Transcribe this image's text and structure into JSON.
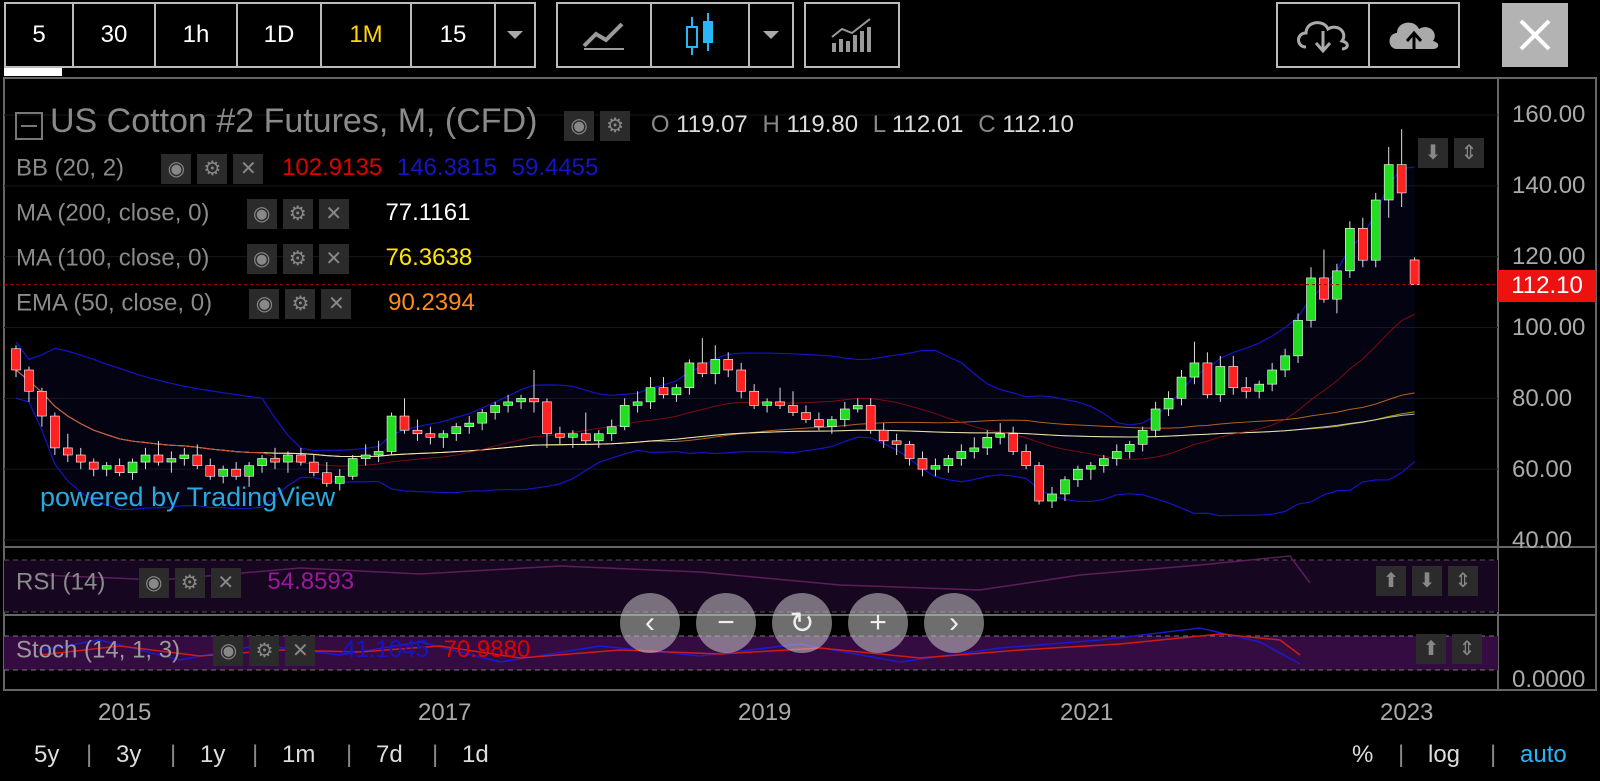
{
  "toolbar": {
    "intervals": [
      "5",
      "30",
      "1h",
      "1D",
      "1M",
      "15"
    ],
    "active_interval": "1M"
  },
  "chart": {
    "title": "US Cotton #2 Futures, M, (CFD)",
    "ohlc": {
      "o_label": "O",
      "o": "119.07",
      "h_label": "H",
      "h": "119.80",
      "l_label": "L",
      "l": "112.01",
      "c_label": "C",
      "c": "112.10"
    },
    "indicators": [
      {
        "name": "BB (20, 2)",
        "values": [
          {
            "text": "102.9135",
            "color": "#e00000"
          },
          {
            "text": "146.3815",
            "color": "#1414c8"
          },
          {
            "text": "59.4455",
            "color": "#1414c8"
          }
        ]
      },
      {
        "name": "MA (200, close, 0)",
        "values": [
          {
            "text": "77.1161",
            "color": "#ffffff"
          }
        ]
      },
      {
        "name": "MA (100, close, 0)",
        "values": [
          {
            "text": "76.3638",
            "color": "#ffe600"
          }
        ]
      },
      {
        "name": "EMA (50, close, 0)",
        "values": [
          {
            "text": "90.2394",
            "color": "#ff8c1a"
          }
        ]
      }
    ],
    "price_axis": [
      "160.00",
      "140.00",
      "120.00",
      "100.00",
      "80.00",
      "60.00",
      "40.00"
    ],
    "last_price": "112.10",
    "watermark": "powered by TradingView",
    "time_axis": [
      "2015",
      "2017",
      "2019",
      "2021",
      "2023"
    ],
    "rsi": {
      "name": "RSI (14)",
      "value": "54.8593"
    },
    "stoch": {
      "name": "Stoch (14, 1, 3)",
      "k": "41.1045",
      "d": "70.9880",
      "axis_label": "0.0000"
    }
  },
  "chart_data": {
    "type": "candlestick",
    "ylim": [
      40,
      160
    ],
    "last": 112.1,
    "colors": {
      "up": "#22dd22",
      "down": "#ff2222",
      "bb": "#1414c8",
      "ema": "#ff8c1a",
      "ma100": "#ffe600",
      "ma200": "#ffffff"
    },
    "candles": [
      [
        94,
        95,
        86,
        88
      ],
      [
        88,
        89,
        79,
        82
      ],
      [
        82,
        83,
        72,
        75
      ],
      [
        75,
        76,
        64,
        66
      ],
      [
        66,
        70,
        62,
        64
      ],
      [
        64,
        66,
        60,
        62
      ],
      [
        62,
        63,
        58,
        60
      ],
      [
        60,
        62,
        58,
        61
      ],
      [
        61,
        63,
        58,
        59
      ],
      [
        59,
        63,
        57,
        62
      ],
      [
        62,
        66,
        60,
        64
      ],
      [
        64,
        68,
        61,
        62
      ],
      [
        62,
        65,
        59,
        63
      ],
      [
        63,
        66,
        61,
        64
      ],
      [
        64,
        67,
        60,
        61
      ],
      [
        61,
        63,
        57,
        58
      ],
      [
        58,
        61,
        56,
        60
      ],
      [
        60,
        62,
        57,
        58
      ],
      [
        58,
        62,
        55,
        61
      ],
      [
        61,
        64,
        59,
        63
      ],
      [
        63,
        66,
        60,
        62
      ],
      [
        62,
        65,
        59,
        64
      ],
      [
        64,
        66,
        61,
        62
      ],
      [
        62,
        64,
        58,
        59
      ],
      [
        59,
        62,
        55,
        56
      ],
      [
        56,
        60,
        54,
        58
      ],
      [
        58,
        64,
        57,
        63
      ],
      [
        63,
        67,
        61,
        64
      ],
      [
        64,
        68,
        62,
        65
      ],
      [
        65,
        76,
        64,
        75
      ],
      [
        75,
        80,
        70,
        71
      ],
      [
        71,
        74,
        68,
        70
      ],
      [
        70,
        72,
        67,
        69
      ],
      [
        69,
        71,
        66,
        70
      ],
      [
        70,
        73,
        68,
        72
      ],
      [
        72,
        75,
        70,
        73
      ],
      [
        73,
        77,
        71,
        76
      ],
      [
        76,
        79,
        74,
        78
      ],
      [
        78,
        81,
        76,
        79
      ],
      [
        79,
        81,
        77,
        80
      ],
      [
        80,
        88,
        76,
        79
      ],
      [
        79,
        80,
        66,
        70
      ],
      [
        70,
        72,
        67,
        69
      ],
      [
        69,
        71,
        66,
        70
      ],
      [
        70,
        76,
        67,
        68
      ],
      [
        68,
        71,
        66,
        70
      ],
      [
        70,
        74,
        68,
        72
      ],
      [
        72,
        80,
        71,
        78
      ],
      [
        78,
        82,
        76,
        79
      ],
      [
        79,
        86,
        77,
        83
      ],
      [
        83,
        86,
        80,
        81
      ],
      [
        81,
        84,
        79,
        83
      ],
      [
        83,
        91,
        81,
        90
      ],
      [
        90,
        97,
        86,
        87
      ],
      [
        87,
        95,
        84,
        91
      ],
      [
        91,
        93,
        86,
        88
      ],
      [
        88,
        90,
        80,
        82
      ],
      [
        82,
        84,
        77,
        78
      ],
      [
        78,
        80,
        76,
        79
      ],
      [
        79,
        83,
        77,
        78
      ],
      [
        78,
        82,
        75,
        76
      ],
      [
        76,
        78,
        73,
        74
      ],
      [
        74,
        76,
        71,
        72
      ],
      [
        72,
        75,
        70,
        74
      ],
      [
        74,
        79,
        72,
        77
      ],
      [
        77,
        80,
        76,
        78
      ],
      [
        78,
        80,
        70,
        71
      ],
      [
        71,
        73,
        66,
        68
      ],
      [
        68,
        70,
        64,
        67
      ],
      [
        67,
        68,
        61,
        63
      ],
      [
        63,
        65,
        58,
        60
      ],
      [
        60,
        63,
        58,
        61
      ],
      [
        61,
        64,
        59,
        63
      ],
      [
        63,
        67,
        61,
        65
      ],
      [
        65,
        69,
        63,
        66
      ],
      [
        66,
        71,
        64,
        69
      ],
      [
        69,
        73,
        67,
        70
      ],
      [
        70,
        72,
        64,
        65
      ],
      [
        65,
        67,
        60,
        61
      ],
      [
        61,
        62,
        50,
        51
      ],
      [
        51,
        55,
        49,
        53
      ],
      [
        53,
        58,
        51,
        57
      ],
      [
        57,
        61,
        55,
        60
      ],
      [
        60,
        62,
        57,
        61
      ],
      [
        61,
        64,
        59,
        63
      ],
      [
        63,
        67,
        61,
        65
      ],
      [
        65,
        68,
        63,
        67
      ],
      [
        67,
        72,
        65,
        71
      ],
      [
        71,
        79,
        69,
        77
      ],
      [
        77,
        82,
        75,
        80
      ],
      [
        80,
        88,
        78,
        86
      ],
      [
        86,
        96,
        84,
        90
      ],
      [
        90,
        93,
        80,
        81
      ],
      [
        81,
        92,
        79,
        89
      ],
      [
        89,
        92,
        81,
        83
      ],
      [
        83,
        86,
        80,
        82
      ],
      [
        82,
        85,
        80,
        84
      ],
      [
        84,
        90,
        82,
        88
      ],
      [
        88,
        94,
        86,
        92
      ],
      [
        92,
        104,
        90,
        102
      ],
      [
        102,
        117,
        100,
        114
      ],
      [
        114,
        122,
        107,
        108
      ],
      [
        108,
        118,
        104,
        116
      ],
      [
        116,
        130,
        114,
        128
      ],
      [
        128,
        131,
        117,
        119
      ],
      [
        119,
        138,
        117,
        136
      ],
      [
        136,
        151,
        131,
        146
      ],
      [
        146,
        156,
        134,
        138
      ],
      [
        119.07,
        119.8,
        112.01,
        112.1
      ]
    ]
  }
}
